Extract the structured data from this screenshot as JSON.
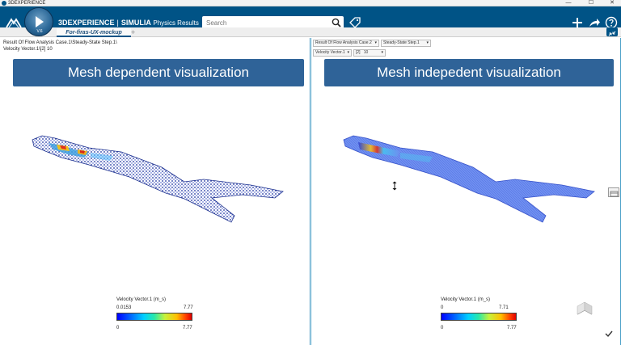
{
  "os_window": {
    "title": "3DEXPERIENCE",
    "minimize": "—",
    "maximize": "☐",
    "close": "✕"
  },
  "header": {
    "brand_bold": "3DEXPERIENCE",
    "separator": "|",
    "brand_product": "SIMULIA",
    "app_name": "Physics Results",
    "compass_version": "V.6"
  },
  "search": {
    "placeholder": "Search",
    "value": ""
  },
  "tabs": [
    {
      "label": "For-firas-UX-mockup"
    }
  ],
  "tab_add": "+",
  "left": {
    "info_line1": "Result Of Flow Analysis Case.1\\Steady-State Step.1\\",
    "info_line2": "Velocity Vector.1\\[2]      10",
    "banner": "Mesh dependent visualization",
    "legend": {
      "title": "Velocity Vector.1  (m_s)",
      "min_top": "0.0153",
      "max_top": "7.77",
      "min_bottom": "0",
      "max_bottom": "7.77"
    }
  },
  "right": {
    "dropdowns": {
      "result": "Result Of Flow Analysis Case.2",
      "step": "Steady-State Step.1",
      "variable": "Velocity Vector.1",
      "component": "[2]",
      "frame": "10"
    },
    "banner": "Mesh indepedent visualization",
    "legend": {
      "title": "Velocity Vector.1  (m_s)",
      "min_top": "0",
      "max_top": "7.71",
      "min_bottom": "0",
      "max_bottom": "7.77"
    }
  },
  "colors": {
    "header_bg": "#005386",
    "banner_bg": "#2f6398",
    "panel_border": "#4aa0c8"
  }
}
